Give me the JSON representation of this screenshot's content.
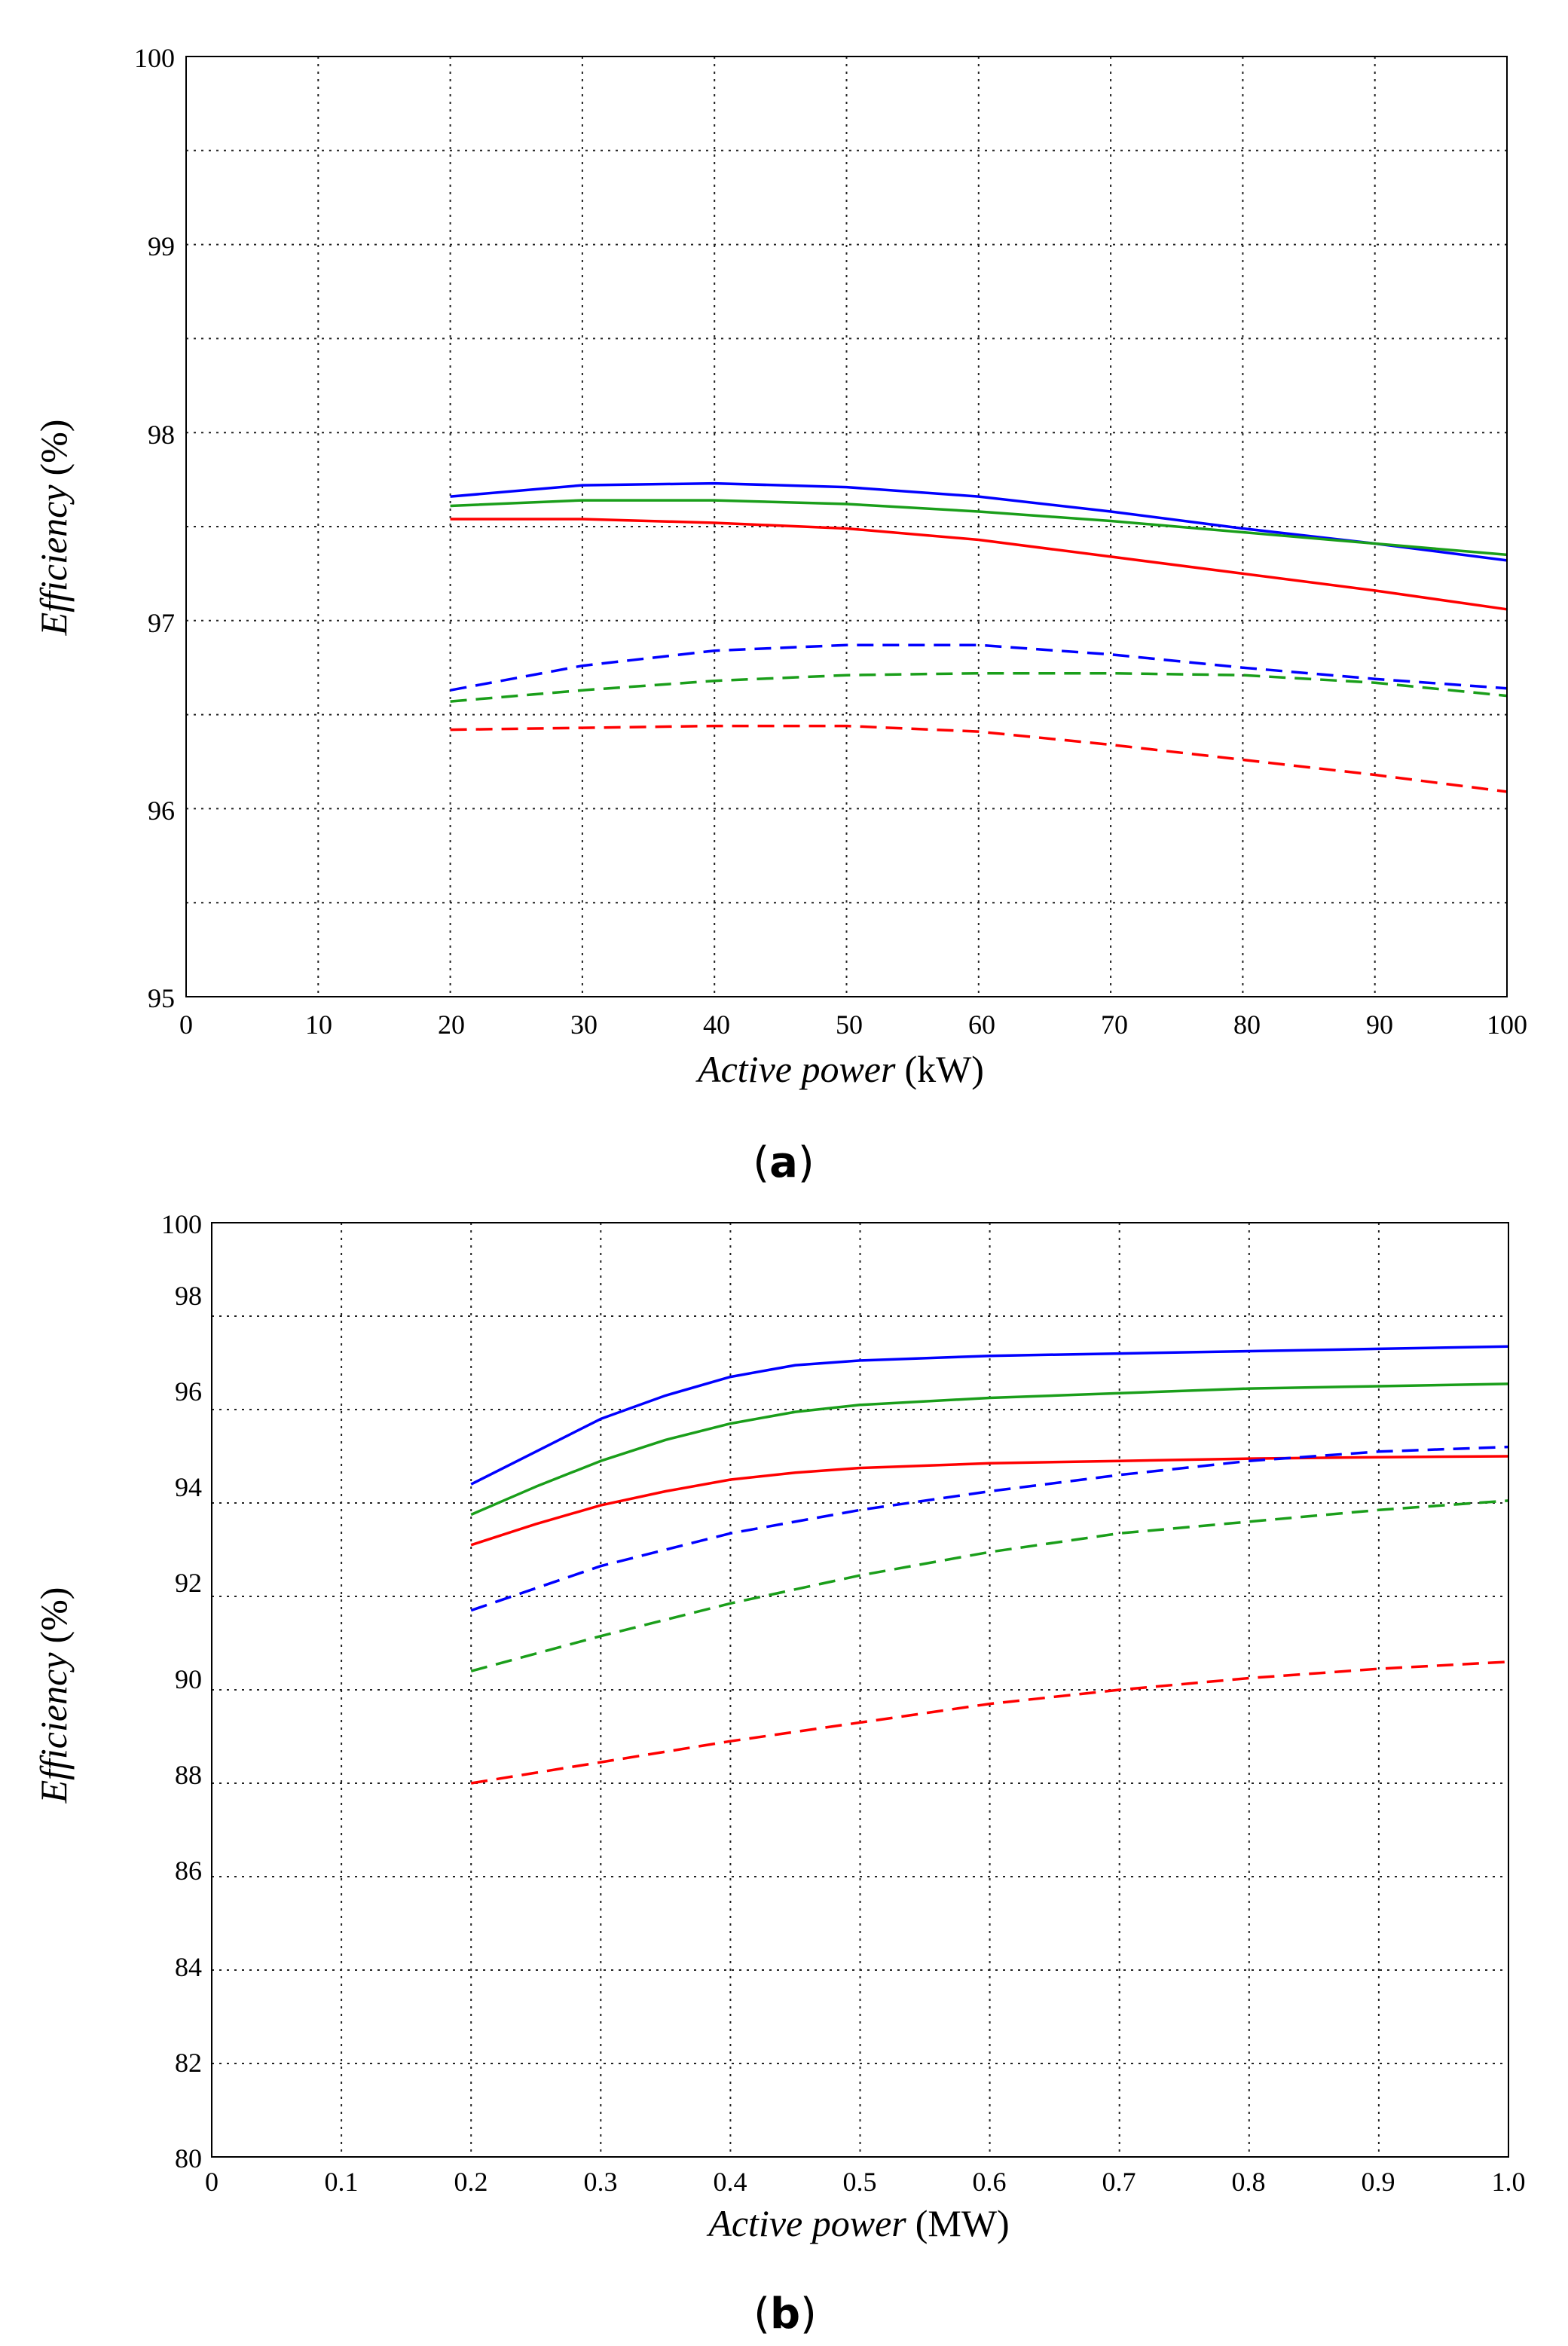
{
  "chart_data": [
    {
      "type": "line",
      "caption": "a",
      "xlabel": "Active power",
      "xunit": "(kW)",
      "ylabel": "Efficiency",
      "yunit": "(%)",
      "xlim": [
        0,
        100
      ],
      "ylim": [
        95,
        100
      ],
      "xticks": [
        0,
        10,
        20,
        30,
        40,
        50,
        60,
        70,
        80,
        90,
        100
      ],
      "xtick_labels": [
        "0",
        "10",
        "20",
        "30",
        "40",
        "50",
        "60",
        "70",
        "80",
        "90",
        "100"
      ],
      "yticks": [
        95,
        96,
        97,
        98,
        99,
        100
      ],
      "ytick_labels": [
        "95",
        "96",
        "97",
        "98",
        "99",
        "100"
      ],
      "ygrid": [
        95.5,
        96,
        96.5,
        97,
        97.5,
        98,
        98.5,
        99,
        99.5
      ],
      "grid": true,
      "legend": "none",
      "series": [
        {
          "color": "#0000ff",
          "style": "solid",
          "x": [
            20,
            30,
            40,
            50,
            60,
            70,
            80,
            90,
            100
          ],
          "y": [
            97.66,
            97.72,
            97.73,
            97.71,
            97.66,
            97.58,
            97.49,
            97.41,
            97.32
          ]
        },
        {
          "color": "#1a9e1a",
          "style": "solid",
          "x": [
            20,
            30,
            40,
            50,
            60,
            70,
            80,
            90,
            100
          ],
          "y": [
            97.61,
            97.64,
            97.64,
            97.62,
            97.58,
            97.53,
            97.47,
            97.41,
            97.35
          ]
        },
        {
          "color": "#ff0000",
          "style": "solid",
          "x": [
            20,
            30,
            40,
            50,
            60,
            70,
            80,
            90,
            100
          ],
          "y": [
            97.54,
            97.54,
            97.52,
            97.49,
            97.43,
            97.34,
            97.25,
            97.16,
            97.06
          ]
        },
        {
          "color": "#0000ff",
          "style": "dashed",
          "x": [
            20,
            30,
            40,
            50,
            60,
            70,
            80,
            90,
            100
          ],
          "y": [
            96.63,
            96.76,
            96.84,
            96.87,
            96.87,
            96.82,
            96.75,
            96.69,
            96.64
          ]
        },
        {
          "color": "#1a9e1a",
          "style": "dashed",
          "x": [
            20,
            30,
            40,
            50,
            60,
            70,
            80,
            90,
            100
          ],
          "y": [
            96.57,
            96.63,
            96.68,
            96.71,
            96.72,
            96.72,
            96.71,
            96.67,
            96.6
          ]
        },
        {
          "color": "#ff0000",
          "style": "dashed",
          "x": [
            20,
            30,
            40,
            50,
            60,
            70,
            80,
            90,
            100
          ],
          "y": [
            96.42,
            96.43,
            96.44,
            96.44,
            96.41,
            96.34,
            96.26,
            96.18,
            96.09
          ]
        }
      ]
    },
    {
      "type": "line",
      "caption": "b",
      "xlabel": "Active power",
      "xunit": "(MW)",
      "ylabel": "Efficiency",
      "yunit": "(%)",
      "xlim": [
        0,
        1.0
      ],
      "ylim": [
        80,
        100
      ],
      "xticks": [
        0,
        0.1,
        0.2,
        0.3,
        0.4,
        0.5,
        0.6,
        0.7,
        0.8,
        0.9,
        1.0
      ],
      "xtick_labels": [
        "0",
        "0.1",
        "0.2",
        "0.3",
        "0.4",
        "0.5",
        "0.6",
        "0.7",
        "0.8",
        "0.9",
        "1.0"
      ],
      "yticks": [
        80,
        82,
        84,
        86,
        88,
        90,
        92,
        94,
        96,
        98,
        100
      ],
      "ytick_labels": [
        "80",
        "82",
        "84",
        "86",
        "88",
        "90",
        "92",
        "94",
        "96",
        "98",
        "100"
      ],
      "ygrid": [
        82,
        84,
        86,
        88,
        90,
        92,
        94,
        96,
        98
      ],
      "grid": true,
      "legend": "none",
      "series": [
        {
          "color": "#0000ff",
          "style": "solid",
          "x": [
            0.2,
            0.25,
            0.3,
            0.35,
            0.4,
            0.45,
            0.5,
            0.6,
            0.7,
            0.8,
            0.9,
            1.0
          ],
          "y": [
            94.4,
            95.1,
            95.8,
            96.3,
            96.7,
            96.95,
            97.05,
            97.15,
            97.2,
            97.25,
            97.3,
            97.35
          ]
        },
        {
          "color": "#1a9e1a",
          "style": "solid",
          "x": [
            0.2,
            0.25,
            0.3,
            0.35,
            0.4,
            0.45,
            0.5,
            0.6,
            0.7,
            0.8,
            0.9,
            1.0
          ],
          "y": [
            93.75,
            94.35,
            94.9,
            95.35,
            95.7,
            95.95,
            96.1,
            96.25,
            96.35,
            96.45,
            96.5,
            96.55
          ]
        },
        {
          "color": "#ff0000",
          "style": "solid",
          "x": [
            0.2,
            0.25,
            0.3,
            0.35,
            0.4,
            0.45,
            0.5,
            0.6,
            0.7,
            0.8,
            0.9,
            1.0
          ],
          "y": [
            93.1,
            93.55,
            93.95,
            94.25,
            94.5,
            94.65,
            94.75,
            94.85,
            94.9,
            94.95,
            94.98,
            95.0
          ]
        },
        {
          "color": "#0000ff",
          "style": "dashed",
          "x": [
            0.2,
            0.3,
            0.4,
            0.5,
            0.6,
            0.7,
            0.8,
            0.9,
            1.0
          ],
          "y": [
            91.7,
            92.65,
            93.35,
            93.85,
            94.25,
            94.6,
            94.9,
            95.1,
            95.2
          ]
        },
        {
          "color": "#1a9e1a",
          "style": "dashed",
          "x": [
            0.2,
            0.3,
            0.4,
            0.5,
            0.6,
            0.7,
            0.8,
            0.9,
            1.0
          ],
          "y": [
            90.4,
            91.15,
            91.85,
            92.45,
            92.95,
            93.35,
            93.6,
            93.85,
            94.05
          ]
        },
        {
          "color": "#ff0000",
          "style": "dashed",
          "x": [
            0.2,
            0.3,
            0.4,
            0.5,
            0.6,
            0.7,
            0.8,
            0.9,
            1.0
          ],
          "y": [
            88.0,
            88.45,
            88.9,
            89.3,
            89.7,
            90.0,
            90.25,
            90.45,
            90.6
          ]
        }
      ]
    }
  ]
}
